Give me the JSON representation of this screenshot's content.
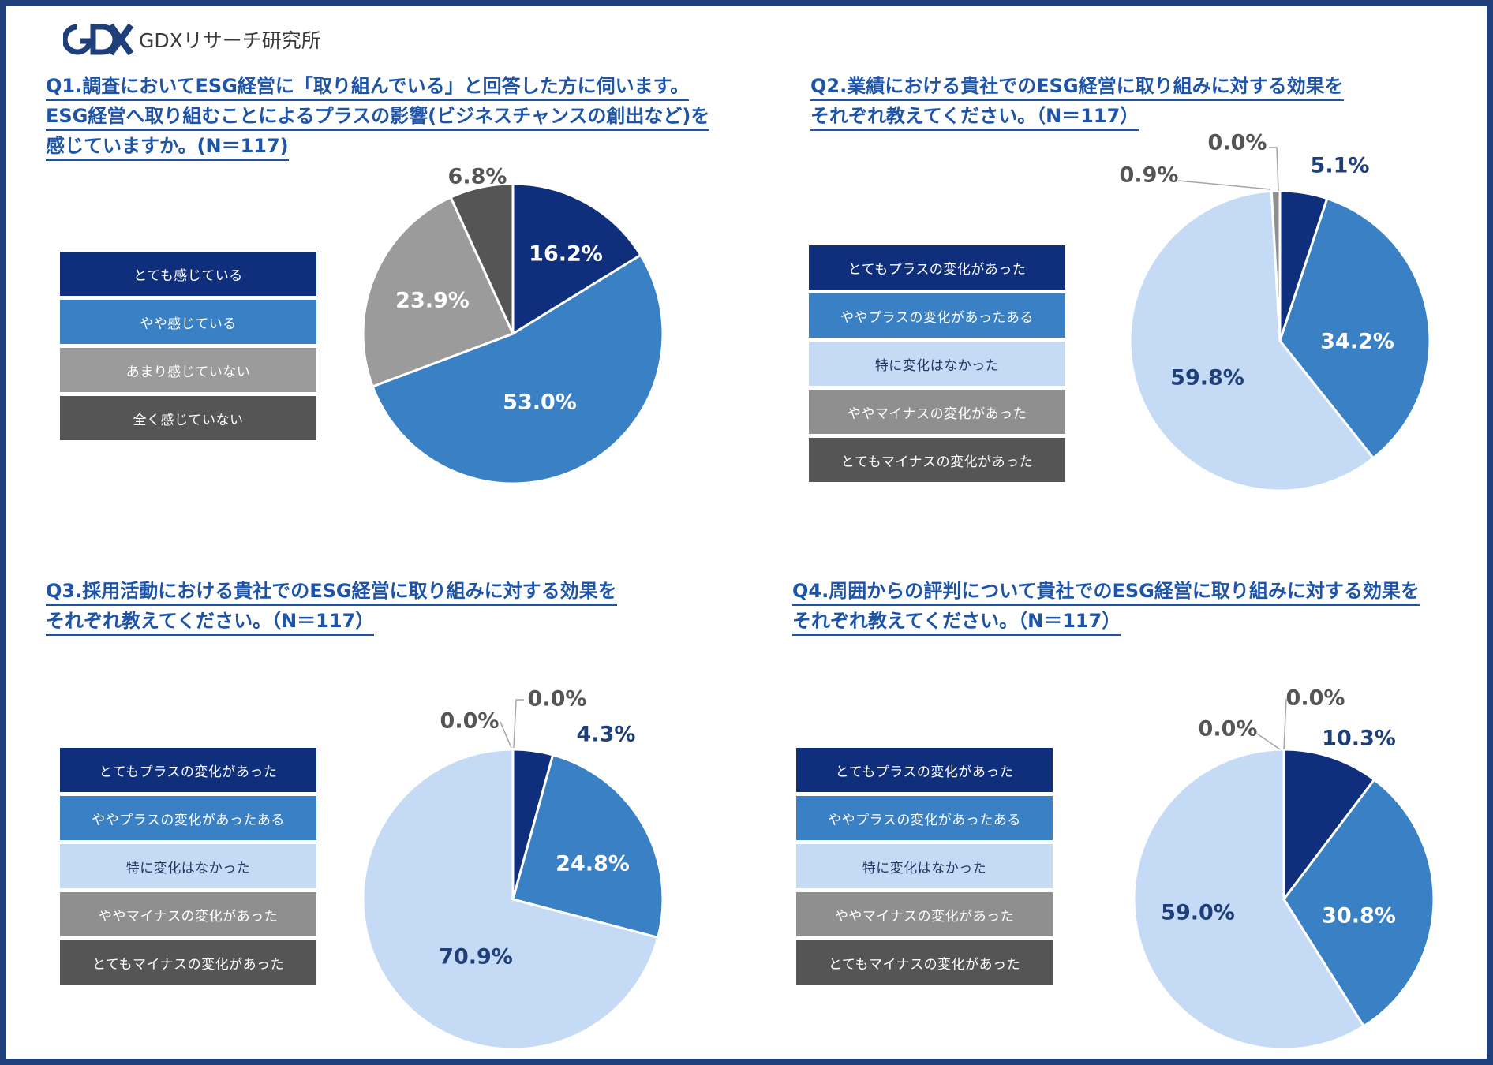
{
  "logo": {
    "text": "GDXリサーチ研究所",
    "mark": "GDX"
  },
  "colors": {
    "frame": "#1f3f7a",
    "title": "#1e54a8",
    "c1": "#0f2f7c",
    "c2": "#3a80c4",
    "c3": "#c5dbf5",
    "c4": "#8f8f8f",
    "c5": "#555555",
    "q1c3": "#9b9b9b"
  },
  "chart_data": [
    {
      "id": "q1",
      "type": "pie",
      "title_lines": [
        "Q1.調査においてESG経営に「取り組んでいる」と回答した方に伺います。",
        "ESG経営へ取り組むことによるプラスの影響(ビジネスチャンスの創出など)を",
        "感じていますか。(N＝117)"
      ],
      "categories": [
        "とても感じている",
        "やや感じている",
        "あまり感じていない",
        "全く感じていない"
      ],
      "values": [
        16.2,
        53.0,
        23.9,
        6.8
      ],
      "labels": [
        "16.2%",
        "53.0%",
        "23.9%",
        "6.8%"
      ],
      "colors": [
        "#0f2f7c",
        "#3a80c4",
        "#9b9b9b",
        "#555555"
      ]
    },
    {
      "id": "q2",
      "type": "pie",
      "title_lines": [
        "Q2.業績における貴社でのESG経営に取り組みに対する効果を",
        "それぞれ教えてください。（N＝117）"
      ],
      "categories": [
        "とてもプラスの変化があった",
        "ややプラスの変化があったある",
        "特に変化はなかった",
        "ややマイナスの変化があった",
        "とてもマイナスの変化があった"
      ],
      "values": [
        5.1,
        34.2,
        59.8,
        0.9,
        0.0
      ],
      "labels": [
        "5.1%",
        "34.2%",
        "59.8%",
        "0.9%",
        "0.0%"
      ],
      "colors": [
        "#0f2f7c",
        "#3a80c4",
        "#c5dbf5",
        "#8f8f8f",
        "#555555"
      ]
    },
    {
      "id": "q3",
      "type": "pie",
      "title_lines": [
        "Q3.採用活動における貴社でのESG経営に取り組みに対する効果を",
        "それぞれ教えてください。（N＝117）"
      ],
      "categories": [
        "とてもプラスの変化があった",
        "ややプラスの変化があったある",
        "特に変化はなかった",
        "ややマイナスの変化があった",
        "とてもマイナスの変化があった"
      ],
      "values": [
        4.3,
        24.8,
        70.9,
        0.0,
        0.0
      ],
      "labels": [
        "4.3%",
        "24.8%",
        "70.9%",
        "0.0%",
        "0.0%"
      ],
      "colors": [
        "#0f2f7c",
        "#3a80c4",
        "#c5dbf5",
        "#8f8f8f",
        "#555555"
      ]
    },
    {
      "id": "q4",
      "type": "pie",
      "title_lines": [
        "Q4.周囲からの評判について貴社でのESG経営に取り組みに対する効果を",
        "それぞれ教えてください。（N＝117）"
      ],
      "categories": [
        "とてもプラスの変化があった",
        "ややプラスの変化があったある",
        "特に変化はなかった",
        "ややマイナスの変化があった",
        "とてもマイナスの変化があった"
      ],
      "values": [
        10.3,
        30.8,
        59.0,
        0.0,
        0.0
      ],
      "labels": [
        "10.3%",
        "30.8%",
        "59.0%",
        "0.0%",
        "0.0%"
      ],
      "colors": [
        "#0f2f7c",
        "#3a80c4",
        "#c5dbf5",
        "#8f8f8f",
        "#555555"
      ]
    }
  ]
}
